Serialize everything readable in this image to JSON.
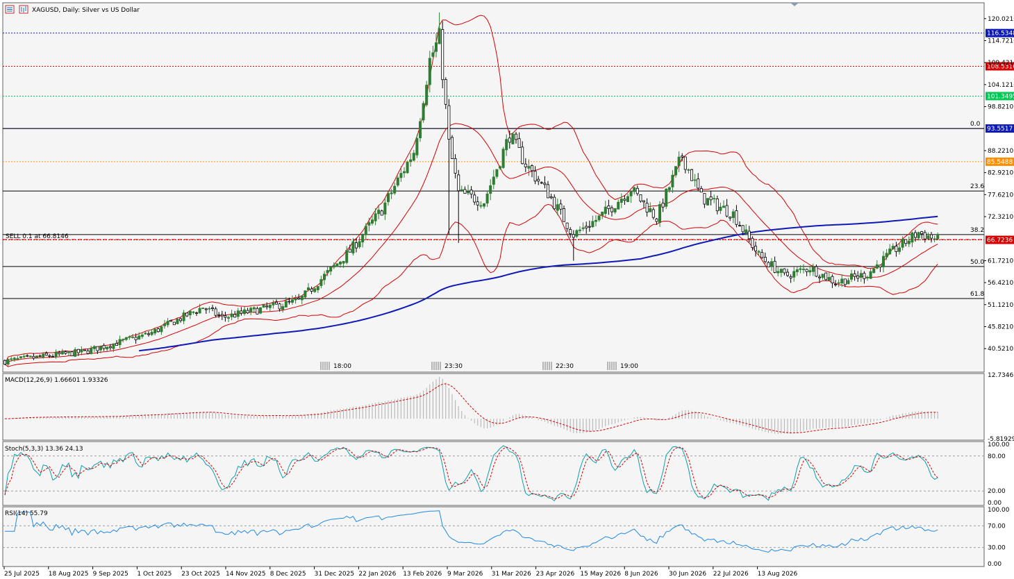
{
  "header": {
    "symbol_title": "XAGUSD, Daily:  Silver vs US Dollar"
  },
  "icons": [
    "list-icon",
    "chart-type-icon"
  ],
  "colors": {
    "bull": "#2e7d32",
    "bear": "#000000",
    "boll": "#d50000",
    "ma": "#0d1ab8",
    "stoch_main": "#0aa0aa",
    "stoch_signal": "#d50000",
    "rsi": "#1e88e5",
    "macd_hist": "#b0b0b0",
    "macd_signal": "#d50000"
  },
  "chart_data": {
    "type": "candlestick",
    "title": "XAGUSD, Daily:  Silver vs US Dollar",
    "price_axis": {
      "ylim": [
        35.2,
        123.5
      ],
      "ticks": [
        "120.0210",
        "114.7210",
        "109.4210",
        "104.1210",
        "98.8210",
        "88.2210",
        "82.9210",
        "77.6210",
        "72.3210",
        "61.7210",
        "56.4210",
        "51.1210",
        "45.8210",
        "40.5210"
      ]
    },
    "time_axis": {
      "labels": [
        "25 Jul 2025",
        "18 Aug 2025",
        "9 Sep 2025",
        "1 Oct 2025",
        "23 Oct 2025",
        "14 Nov 2025",
        "8 Dec 2025",
        "31 Dec 2025",
        "22 Jan 2026",
        "13 Feb 2026",
        "9 Mar 2026",
        "31 Mar 2026",
        "23 Apr 2026",
        "15 May 2026",
        "8 Jun 2026",
        "30 Jun 2026",
        "22 Jul 2026",
        "13 Aug 2026"
      ],
      "session_markers": [
        "18:00",
        "23:30",
        "22:30",
        "19:00"
      ]
    },
    "price_levels": [
      {
        "price": 116.5348,
        "label": "116.5348",
        "color": "#0d1ab8",
        "style": "dotted"
      },
      {
        "price": 108.5316,
        "label": "108.5316",
        "color": "#d50000",
        "style": "dotted"
      },
      {
        "price": 101.3495,
        "label": "101.3495",
        "color": "#00c853",
        "style": "dotted"
      },
      {
        "price": 93.5517,
        "label": "93.5517",
        "color": "#0d1ab8",
        "style": "solid"
      },
      {
        "price": 85.5488,
        "label": "85.5488",
        "color": "#ff8f00",
        "style": "dotted"
      },
      {
        "price": 66.7236,
        "label": "66.7236",
        "color": "#d50000",
        "style": "dotted"
      }
    ],
    "fibonacci": [
      {
        "level": "0.0",
        "price": 93.55
      },
      {
        "level": "23.6",
        "price": 78.5
      },
      {
        "level": "38.2",
        "price": 68.0
      },
      {
        "level": "50.0",
        "price": 60.3
      },
      {
        "level": "61.8",
        "price": 52.6
      }
    ],
    "order_label": "SELL 0.1 at 66.8146",
    "order_price": 66.8146,
    "indicators": {
      "bollinger": "Bollinger Bands",
      "ma": "Moving Average",
      "macd": {
        "title": "MACD(12,26,9) 1.66601 1.93326",
        "ylim": [
          -5.81929,
          12.73463
        ],
        "ticks": [
          "12.73463",
          "-5.81929"
        ]
      },
      "stoch": {
        "title": "Stoch(5,3,3) 13.36 24.13",
        "ticks": [
          "100.00",
          "80.00",
          "20.00",
          "0.00"
        ],
        "levels": [
          80,
          20
        ]
      },
      "rsi": {
        "title": "RSI(14) 55.79",
        "ticks": [
          "100.00",
          "70.00",
          "30.00",
          "0.00"
        ],
        "levels": [
          70,
          30
        ]
      }
    },
    "anchors": [
      {
        "t": 0,
        "p": 37.5
      },
      {
        "t": 25,
        "p": 39.8
      },
      {
        "t": 45,
        "p": 44.0
      },
      {
        "t": 62,
        "p": 50.5
      },
      {
        "t": 68,
        "p": 48.0
      },
      {
        "t": 80,
        "p": 50.0
      },
      {
        "t": 92,
        "p": 52.0
      },
      {
        "t": 108,
        "p": 64.0
      },
      {
        "t": 118,
        "p": 74.0
      },
      {
        "t": 128,
        "p": 88.0
      },
      {
        "t": 133,
        "p": 110.0
      },
      {
        "t": 136,
        "p": 115.5
      },
      {
        "t": 139,
        "p": 90.0
      },
      {
        "t": 142,
        "p": 78.0
      },
      {
        "t": 150,
        "p": 76.0
      },
      {
        "t": 158,
        "p": 92.0
      },
      {
        "t": 163,
        "p": 85.0
      },
      {
        "t": 170,
        "p": 78.0
      },
      {
        "t": 178,
        "p": 68.0
      },
      {
        "t": 186,
        "p": 72.0
      },
      {
        "t": 196,
        "p": 79.0
      },
      {
        "t": 204,
        "p": 72.0
      },
      {
        "t": 212,
        "p": 87.0
      },
      {
        "t": 218,
        "p": 77.0
      },
      {
        "t": 228,
        "p": 73.0
      },
      {
        "t": 236,
        "p": 63.0
      },
      {
        "t": 244,
        "p": 58.0
      },
      {
        "t": 252,
        "p": 60.0
      },
      {
        "t": 260,
        "p": 56.5
      },
      {
        "t": 270,
        "p": 58.5
      },
      {
        "t": 278,
        "p": 64.0
      },
      {
        "t": 286,
        "p": 68.5
      },
      {
        "t": 292,
        "p": 66.7
      }
    ]
  }
}
